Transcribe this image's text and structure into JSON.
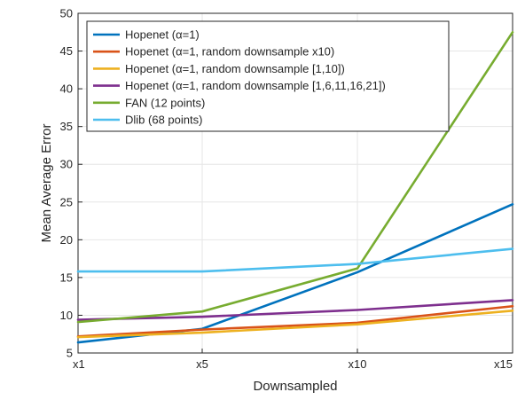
{
  "chart_data": {
    "type": "line",
    "title": "",
    "xlabel": "Downsampled",
    "ylabel": "Mean Average Error",
    "categories": [
      "x1",
      "x5",
      "x10",
      "x15"
    ],
    "x": [
      1,
      5,
      10,
      15
    ],
    "xlim": [
      1,
      15
    ],
    "ylim": [
      5,
      50
    ],
    "yticks": [
      5,
      10,
      15,
      20,
      25,
      30,
      35,
      40,
      45,
      50
    ],
    "grid": true,
    "legend_position": "top-left",
    "series": [
      {
        "name": "Hopenet (α=1)",
        "color": "#0072BD",
        "values": [
          6.4,
          8.2,
          15.7,
          24.7
        ]
      },
      {
        "name": "Hopenet (α=1, random downsample x10)",
        "color": "#D95319",
        "values": [
          7.2,
          8.1,
          9.0,
          11.2
        ]
      },
      {
        "name": "Hopenet (α=1, random downsample [1,10])",
        "color": "#EDB120",
        "values": [
          7.1,
          7.7,
          8.8,
          10.6
        ]
      },
      {
        "name": "Hopenet (α=1, random downsample [1,6,11,16,21])",
        "color": "#7E2F8E",
        "values": [
          9.4,
          9.8,
          10.7,
          12.0
        ]
      },
      {
        "name": "FAN (12 points)",
        "color": "#77AC30",
        "values": [
          9.1,
          10.5,
          16.2,
          47.5
        ]
      },
      {
        "name": "Dlib (68 points)",
        "color": "#4DBEEE",
        "values": [
          15.8,
          15.8,
          16.8,
          18.8
        ]
      }
    ]
  }
}
